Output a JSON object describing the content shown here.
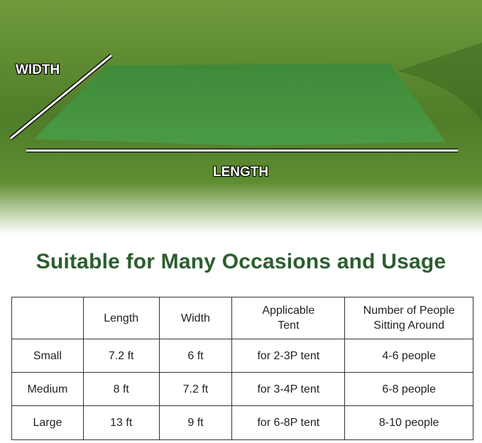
{
  "photo": {
    "width_label": "WIDTH",
    "length_label": "LENGTH",
    "tarp_color": "#3f8a38",
    "grass_color": "#5a8a2e"
  },
  "title": "Suitable for Many Occasions and Usage",
  "title_color": "#2a5e2f",
  "table": {
    "headers": [
      "",
      "Length",
      "Width",
      "Applicable Tent",
      "Number of People Sitting Around"
    ],
    "rows": [
      [
        "Small",
        "7.2 ft",
        "6 ft",
        "for 2-3P tent",
        "4-6 people"
      ],
      [
        "Medium",
        "8 ft",
        "7.2 ft",
        "for 3-4P tent",
        "6-8 people"
      ],
      [
        "Large",
        "13 ft",
        "9 ft",
        "for 6-8P tent",
        "8-10 people"
      ]
    ]
  }
}
